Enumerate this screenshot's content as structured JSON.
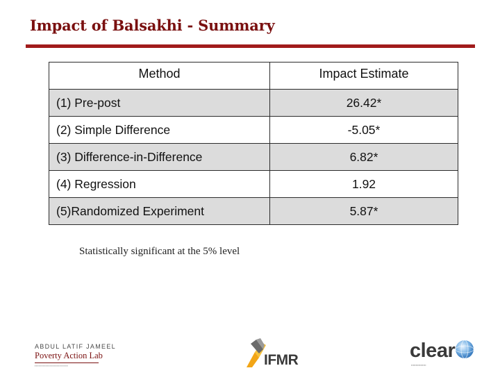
{
  "header": {
    "title": "Impact of Balsakhi - Summary"
  },
  "table": {
    "columns": [
      "Method",
      "Impact Estimate"
    ],
    "rows": [
      {
        "method": "(1) Pre-post",
        "estimate": "26.42*"
      },
      {
        "method": "(2) Simple Difference",
        "estimate": "-5.05*"
      },
      {
        "method": "(3) Difference-in-Difference",
        "estimate": "6.82*"
      },
      {
        "method": "(4) Regression",
        "estimate": "1.92"
      },
      {
        "method": "(5)Randomized Experiment",
        "estimate": "5.87*"
      }
    ]
  },
  "footnote": "Statistically significant at the 5% level",
  "logos": {
    "jpal_top": "ABDUL LATIF JAMEEL",
    "jpal_main": "Poverty Action Lab",
    "ifmr": "IFMR",
    "clear": "clear"
  },
  "colors": {
    "title": "#7a1010",
    "rule": "#a11b1b",
    "shaded_row": "#dcdcdc"
  }
}
